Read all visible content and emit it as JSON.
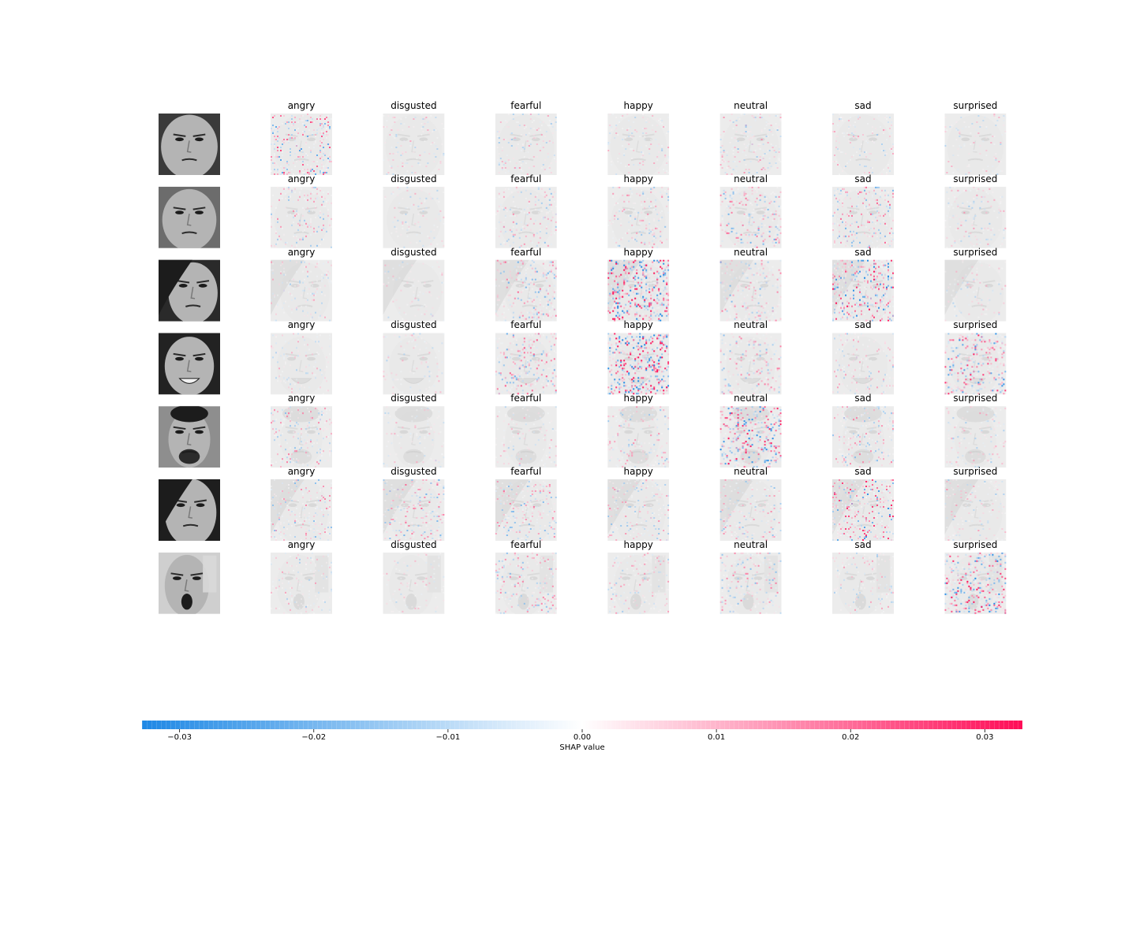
{
  "chart_data": {
    "type": "heatmap",
    "title": "",
    "description_type": "shap_image_plot",
    "rows": 7,
    "classes": [
      "angry",
      "disgusted",
      "fearful",
      "happy",
      "neutral",
      "sad",
      "surprised"
    ],
    "row_subjects": [
      {
        "name": "frowning child",
        "intensity": [
          0.55,
          0.15,
          0.22,
          0.18,
          0.28,
          0.2,
          0.12
        ]
      },
      {
        "name": "pouting older man",
        "intensity": [
          0.3,
          0.12,
          0.3,
          0.3,
          0.45,
          0.45,
          0.22
        ]
      },
      {
        "name": "woman hand on face",
        "intensity": [
          0.2,
          0.08,
          0.45,
          0.95,
          0.4,
          0.75,
          0.12
        ]
      },
      {
        "name": "smiling woman",
        "intensity": [
          0.15,
          0.12,
          0.5,
          0.95,
          0.35,
          0.25,
          0.7
        ]
      },
      {
        "name": "bearded man",
        "intensity": [
          0.35,
          0.12,
          0.15,
          0.3,
          0.75,
          0.35,
          0.2
        ]
      },
      {
        "name": "woman looking down",
        "intensity": [
          0.35,
          0.45,
          0.4,
          0.3,
          0.3,
          0.65,
          0.2
        ]
      },
      {
        "name": "yawning man",
        "intensity": [
          0.2,
          0.1,
          0.35,
          0.25,
          0.35,
          0.2,
          0.75
        ]
      }
    ],
    "colorbar": {
      "label": "SHAP value",
      "range": [
        -0.0328,
        0.0328
      ],
      "ticks": [
        -0.03,
        -0.02,
        -0.01,
        0.0,
        0.01,
        0.02,
        0.03
      ],
      "tick_labels": [
        "−0.03",
        "−0.02",
        "−0.01",
        "0.00",
        "0.01",
        "0.02",
        "0.03"
      ],
      "negative_color": "#1E88E5",
      "positive_color": "#FF0D57",
      "orientation": "horizontal"
    }
  }
}
